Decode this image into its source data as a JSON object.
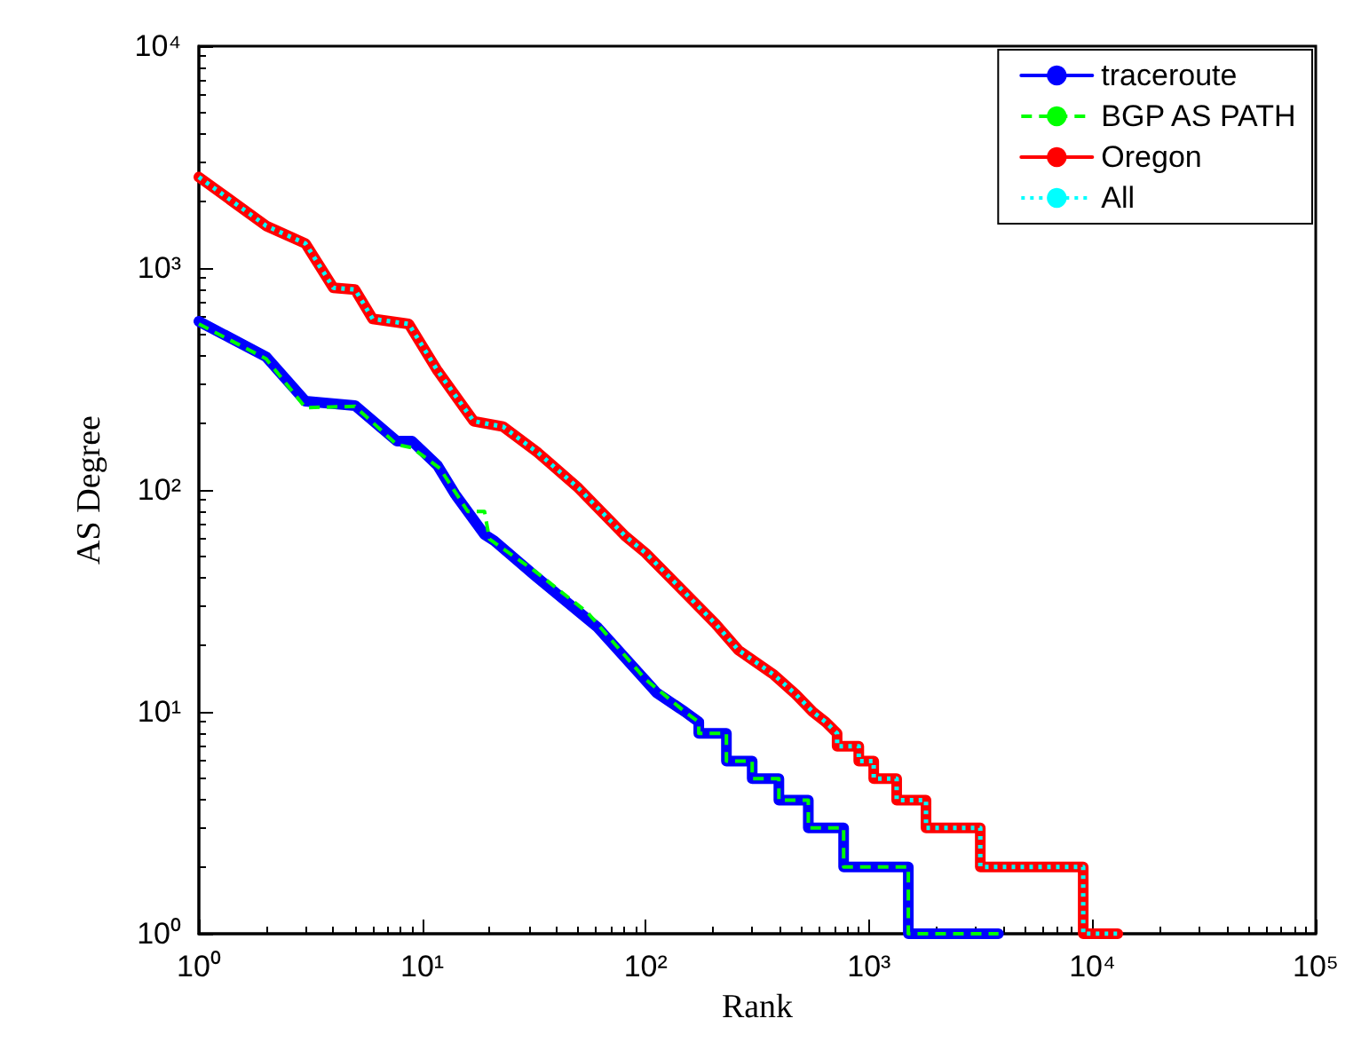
{
  "chart_data": {
    "type": "line",
    "xlabel": "Rank",
    "ylabel": "AS Degree",
    "log": "xy",
    "grid": false,
    "legend": "top right",
    "marker": "none",
    "xlim": [
      1,
      100000
    ],
    "ylim": [
      1,
      10000
    ],
    "xticks": [
      {
        "value": 1,
        "label": "10⁰"
      },
      {
        "value": 10,
        "label": "10¹"
      },
      {
        "value": 100,
        "label": "10²"
      },
      {
        "value": 1000,
        "label": "10³"
      },
      {
        "value": 10000,
        "label": "10⁴"
      },
      {
        "value": 100000,
        "label": "10⁵"
      }
    ],
    "yticks": [
      {
        "value": 1,
        "label": "10⁰"
      },
      {
        "value": 10,
        "label": "10¹"
      },
      {
        "value": 100,
        "label": "10²"
      },
      {
        "value": 1000,
        "label": "10³"
      },
      {
        "value": 10000,
        "label": "10⁴"
      }
    ],
    "series": [
      {
        "name": "traceroute",
        "color": "#0000ff",
        "line_style": "solid",
        "x": [
          1,
          2,
          3,
          5,
          7.7,
          9,
          11.7,
          14,
          19,
          21,
          32,
          61,
          112,
          150,
          173,
          173,
          230,
          230,
          300,
          300,
          395,
          395,
          535,
          535,
          770,
          770,
          1500,
          1500,
          3800
        ],
        "values": [
          575,
          398,
          251,
          240,
          166,
          166,
          129,
          96,
          63,
          59,
          41,
          24,
          12.2,
          10,
          9,
          8,
          8,
          6,
          6,
          5,
          5,
          4,
          4,
          3,
          3,
          2,
          2,
          1,
          1
        ]
      },
      {
        "name": "BGP AS PATH",
        "color": "#00ff00",
        "line_style": "dashed",
        "x": [
          1,
          2,
          3,
          5,
          7.7,
          9,
          12,
          16,
          19,
          20,
          32,
          55,
          100,
          150,
          173,
          173,
          230,
          230,
          300,
          300,
          395,
          395,
          535,
          535,
          770,
          770,
          1500,
          1500,
          3800
        ],
        "values": [
          560,
          390,
          235,
          238,
          160,
          155,
          125,
          80,
          80,
          60,
          43,
          28,
          14,
          10,
          9,
          8,
          8,
          6,
          6,
          5,
          5,
          4,
          4,
          3,
          3,
          2,
          2,
          1,
          1
        ]
      },
      {
        "name": "Oregon",
        "color": "#ff0000",
        "line_style": "solid",
        "x": [
          1,
          2,
          3,
          4,
          5,
          6,
          8.7,
          11.7,
          17,
          23,
          33,
          50,
          81,
          100,
          205,
          260,
          375,
          470,
          560,
          640,
          720,
          720,
          900,
          900,
          1050,
          1050,
          1330,
          1330,
          1800,
          1800,
          3150,
          3150,
          9100,
          9100,
          13000
        ],
        "values": [
          2570,
          1550,
          1290,
          815,
          800,
          590,
          560,
          345,
          204,
          193,
          147,
          102,
          62,
          52,
          25,
          19,
          14.7,
          12,
          10,
          9,
          8,
          7,
          7,
          6,
          6,
          5,
          5,
          4,
          4,
          3,
          3,
          2,
          2,
          1,
          1
        ]
      },
      {
        "name": "All",
        "color": "#00ffff",
        "line_style": "dotted",
        "x": [
          1,
          2,
          3,
          4,
          5,
          6,
          8.7,
          11.7,
          17,
          23,
          33,
          50,
          81,
          100,
          205,
          260,
          375,
          470,
          560,
          640,
          720,
          720,
          900,
          900,
          1050,
          1050,
          1330,
          1330,
          1800,
          1800,
          3150,
          3150,
          9100,
          9100,
          13000
        ],
        "values": [
          2570,
          1550,
          1290,
          815,
          800,
          590,
          560,
          345,
          204,
          193,
          147,
          102,
          62,
          52,
          25,
          19,
          14.7,
          12,
          10,
          9,
          8,
          7,
          7,
          6,
          6,
          5,
          5,
          4,
          4,
          3,
          3,
          2,
          2,
          1,
          1
        ]
      }
    ]
  }
}
